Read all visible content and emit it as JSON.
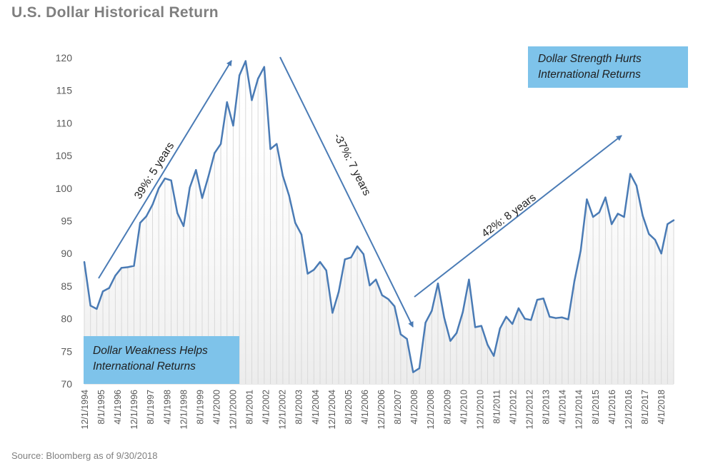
{
  "title": "U.S. Dollar Historical Return",
  "source": "Source: Bloomberg as of 9/30/2018",
  "colors": {
    "line": "#4a7bb5",
    "box": "#7ec3ea",
    "drop": "#d9d9d9",
    "text": "#7f7f7f"
  },
  "annotations": {
    "strength_box": [
      "Dollar Strength Hurts",
      "International Returns"
    ],
    "weakness_box": [
      "Dollar Weakness Helps",
      "International Returns"
    ],
    "arrow_up_1": "39%: 5 years",
    "arrow_down": "-37%: 7 years",
    "arrow_up_2": "42%: 8 years"
  },
  "chart_data": {
    "type": "line",
    "title": "U.S. Dollar Historical Return",
    "ylim": [
      70,
      120
    ],
    "yticks": [
      70,
      75,
      80,
      85,
      90,
      95,
      100,
      105,
      110,
      115,
      120
    ],
    "xtick_labels": [
      "12/1/1994",
      "8/1/1995",
      "4/1/1996",
      "12/1/1996",
      "8/1/1997",
      "4/1/1998",
      "12/1/1998",
      "8/1/1999",
      "4/1/2000",
      "12/1/2000",
      "8/1/2001",
      "4/1/2002",
      "12/1/2002",
      "8/1/2003",
      "4/1/2004",
      "12/1/2004",
      "8/1/2005",
      "4/1/2006",
      "12/1/2006",
      "8/1/2007",
      "4/1/2008",
      "12/1/2008",
      "8/1/2009",
      "4/1/2010",
      "12/1/2010",
      "8/1/2011",
      "4/1/2012",
      "12/1/2012",
      "8/1/2013",
      "4/1/2014",
      "12/1/2014",
      "8/1/2015",
      "4/1/2016",
      "12/1/2016",
      "8/1/2017",
      "4/1/2018"
    ],
    "grid": false,
    "series": [
      {
        "values": [
          88.7,
          82.0,
          81.5,
          84.2,
          84.7,
          86.6,
          87.8,
          87.9,
          88.1,
          94.7,
          95.7,
          97.5,
          100.0,
          101.5,
          101.2,
          96.2,
          94.2,
          100.1,
          102.8,
          98.5,
          101.8,
          105.4,
          106.8,
          113.2,
          109.6,
          117.3,
          119.5,
          113.5,
          116.8,
          118.6,
          106.0,
          106.8,
          101.9,
          98.9,
          94.7,
          92.9,
          86.9,
          87.5,
          88.7,
          87.4,
          80.9,
          84.1,
          89.1,
          89.4,
          91.1,
          89.9,
          85.1,
          86.0,
          83.6,
          83.0,
          81.9,
          77.6,
          76.9,
          71.8,
          72.4,
          79.4,
          81.2,
          85.4,
          80.2,
          76.6,
          77.8,
          81.0,
          86.0,
          78.7,
          78.9,
          76.0,
          74.3,
          78.5,
          80.3,
          79.2,
          81.6,
          80.0,
          79.8,
          82.9,
          83.1,
          80.3,
          80.1,
          80.2,
          79.9,
          85.8,
          90.4,
          98.3,
          95.6,
          96.3,
          98.6,
          94.5,
          96.1,
          95.6,
          102.2,
          100.4,
          95.8,
          93.0,
          92.1,
          90.0,
          94.5,
          95.1
        ]
      }
    ]
  }
}
